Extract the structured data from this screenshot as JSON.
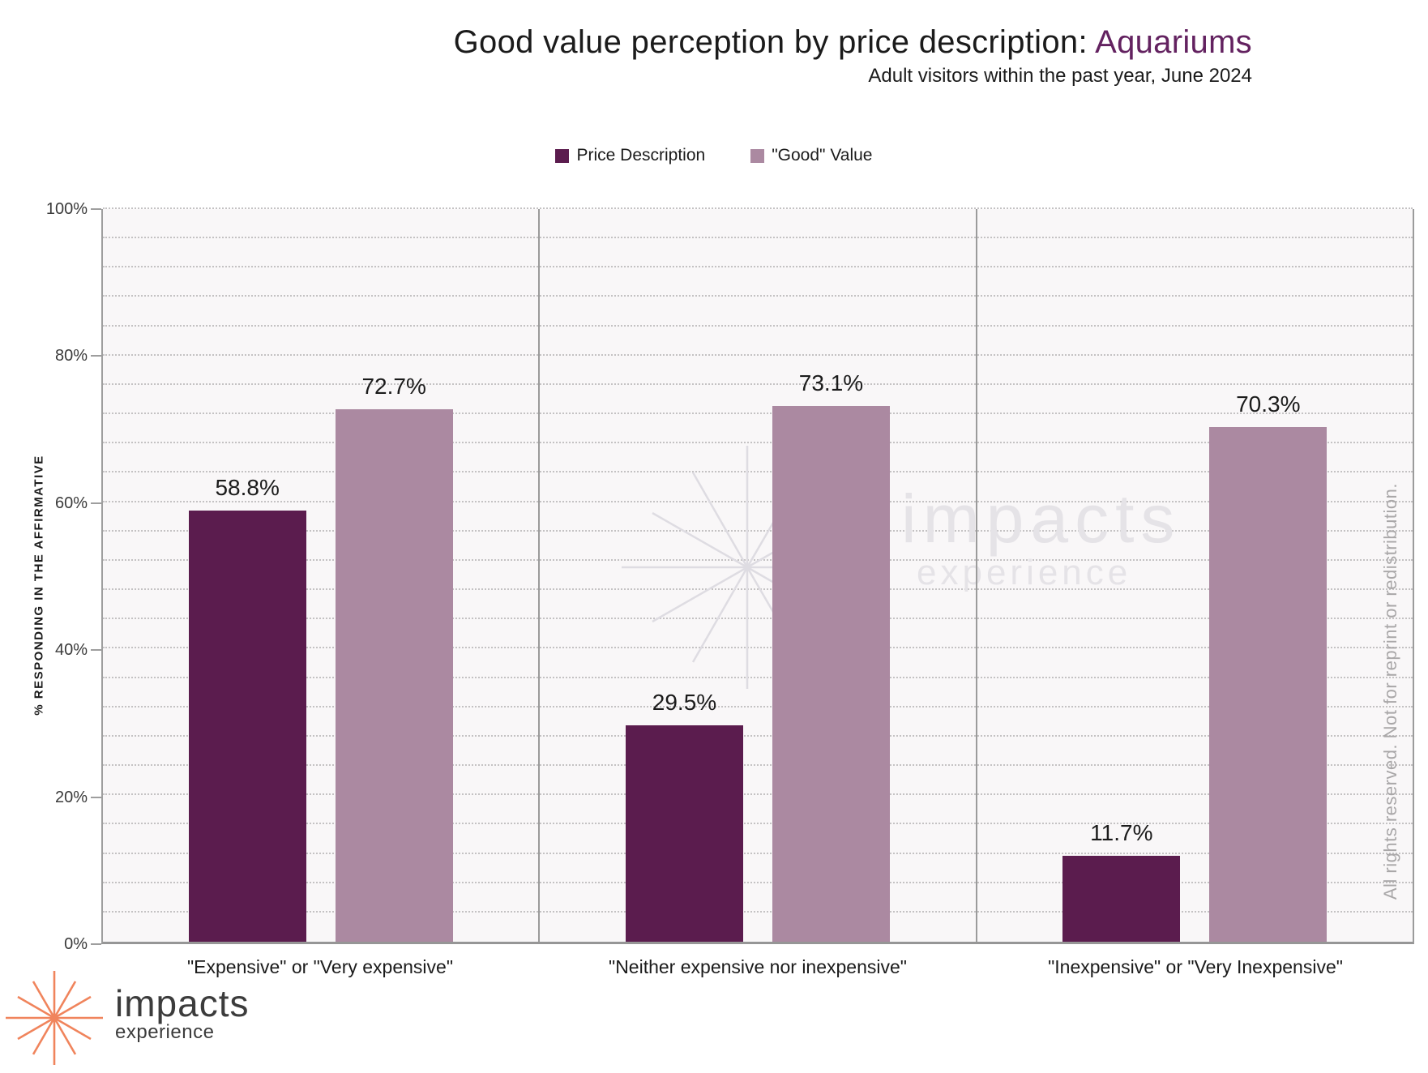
{
  "header": {
    "title_prefix": "Good value perception by price description: ",
    "title_highlight": "Aquariums",
    "subtitle": "Adult visitors within the past year, June 2024"
  },
  "legend": [
    {
      "label": "Price Description",
      "color": "#5b1c4e"
    },
    {
      "label": "\"Good\" Value",
      "color": "#ab89a1"
    }
  ],
  "chart_data": {
    "type": "bar",
    "title": "Good value perception by price description: Aquariums",
    "subtitle": "Adult visitors within the past year, June 2024",
    "categories": [
      "\"Expensive\" or \"Very expensive\"",
      "\"Neither expensive nor inexpensive\"",
      "\"Inexpensive\" or \"Very Inexpensive\""
    ],
    "series": [
      {
        "name": "Price Description",
        "color": "#5b1c4e",
        "values": [
          58.8,
          29.5,
          11.7
        ]
      },
      {
        "name": "\"Good\" Value",
        "color": "#ab89a1",
        "values": [
          72.7,
          73.1,
          70.3
        ]
      }
    ],
    "xlabel": "",
    "ylabel": "% RESPONDING IN THE AFFIRMATIVE",
    "ylim": [
      0,
      100
    ],
    "ytick_step": 20,
    "minor_grid_step": 4,
    "yticks": [
      "0%",
      "20%",
      "40%",
      "60%",
      "80%",
      "100%"
    ],
    "grid": "dotted-horizontal",
    "legend_position": "top-center",
    "value_label_format": "0.0%"
  },
  "watermark": {
    "line1": "impacts",
    "line2": "experience"
  },
  "copyright": "All rights reserved. Not for reprint or redistribution.",
  "logo": {
    "line1": "impacts",
    "line2": "experience"
  },
  "colors": {
    "title_highlight": "#632260",
    "bar_dark": "#5b1c4e",
    "bar_light": "#ab89a1",
    "logo_orange": "#f0845c",
    "watermark_gray": "#e5e3e7"
  }
}
